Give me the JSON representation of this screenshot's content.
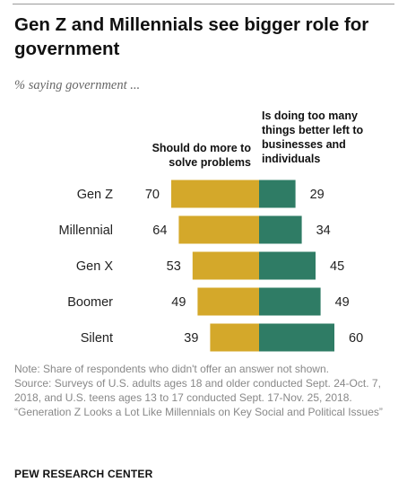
{
  "title": "Gen Z and Millennials see bigger role for government",
  "subtitle": "% saying government ...",
  "notes": {
    "note": "Note: Share of respondents who didn't offer an answer not shown.",
    "source": "Source: Surveys of U.S. adults ages 18 and older conducted Sept. 24-Oct. 7, 2018, and U.S. teens ages 13 to 17 conducted Sept. 17-Nov. 25, 2018.",
    "report": "“Generation Z Looks a Lot Like Millennials on Key Social and Political Issues”"
  },
  "org": "PEW RESEARCH CENTER",
  "chart_data": {
    "type": "bar",
    "orientation": "horizontal-diverging",
    "categories": [
      "Gen Z",
      "Millennial",
      "Gen X",
      "Boomer",
      "Silent"
    ],
    "series": [
      {
        "name": "Should do more to solve problems",
        "values": [
          70,
          64,
          53,
          49,
          39
        ],
        "color": "#d4a82a"
      },
      {
        "name": "Is doing too many things better left to businesses and individuals",
        "values": [
          29,
          34,
          45,
          49,
          60
        ],
        "color": "#2f7c65"
      }
    ]
  }
}
